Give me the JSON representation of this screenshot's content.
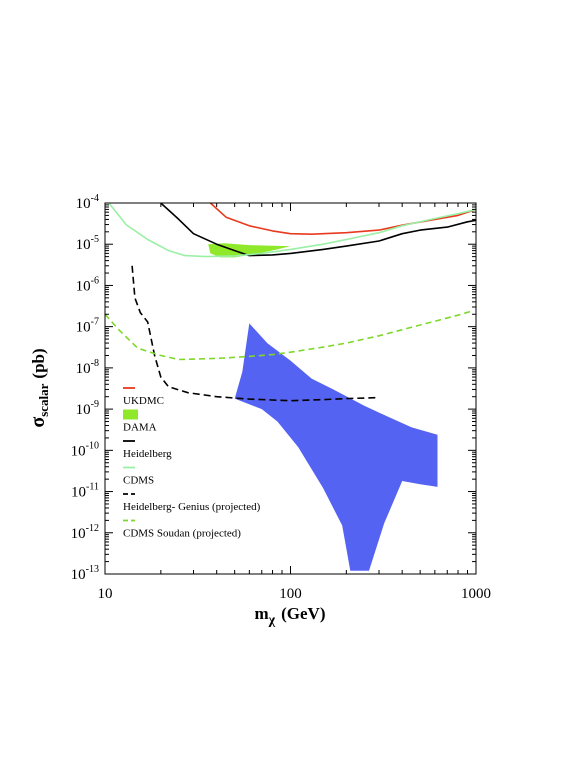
{
  "chart_data": {
    "type": "line",
    "xlabel_main": "m",
    "xlabel_sub": "χ",
    "xlabel_unit": "(GeV)",
    "ylabel_main": "σ",
    "ylabel_sub": "scalar",
    "ylabel_unit": "(pb)",
    "x_scale": "log",
    "y_scale": "log",
    "xlim": [
      10,
      1000
    ],
    "ylim": [
      1e-13,
      0.0001
    ],
    "grid": false,
    "legend_position": "bottom-left",
    "x_ticks": [
      {
        "value": 10,
        "label": "10"
      },
      {
        "value": 100,
        "label": "100"
      },
      {
        "value": 1000,
        "label": "1000"
      }
    ],
    "y_ticks": [
      {
        "value": 0.0001,
        "base": "10",
        "exp": "-4"
      },
      {
        "value": 1e-05,
        "base": "10",
        "exp": "-5"
      },
      {
        "value": 1e-06,
        "base": "10",
        "exp": "-6"
      },
      {
        "value": 1e-07,
        "base": "10",
        "exp": "-7"
      },
      {
        "value": 1e-08,
        "base": "10",
        "exp": "-8"
      },
      {
        "value": 1e-09,
        "base": "10",
        "exp": "-9"
      },
      {
        "value": 1e-10,
        "base": "10",
        "exp": "-10"
      },
      {
        "value": 1e-11,
        "base": "10",
        "exp": "-11"
      },
      {
        "value": 1e-12,
        "base": "10",
        "exp": "-12"
      },
      {
        "value": 1e-13,
        "base": "10",
        "exp": "-13"
      }
    ],
    "series": [
      {
        "name": "UKDMC",
        "kind": "line",
        "color": "#e83a1e",
        "dash": "solid",
        "points": [
          [
            37,
            0.0001
          ],
          [
            45,
            4.5e-05
          ],
          [
            60,
            2.8e-05
          ],
          [
            80,
            2.1e-05
          ],
          [
            100,
            1.8e-05
          ],
          [
            130,
            1.75e-05
          ],
          [
            200,
            1.9e-05
          ],
          [
            300,
            2.2e-05
          ],
          [
            400,
            2.9e-05
          ],
          [
            600,
            4e-05
          ],
          [
            800,
            5e-05
          ],
          [
            1000,
            7e-05
          ]
        ]
      },
      {
        "name": "DAMA",
        "kind": "region",
        "color": "#8fe82a",
        "points": [
          [
            36,
            1e-05
          ],
          [
            44,
            1.05e-05
          ],
          [
            60,
            9.5e-06
          ],
          [
            80,
            9.2e-06
          ],
          [
            100,
            9e-06
          ],
          [
            85,
            7.5e-06
          ],
          [
            65,
            5.8e-06
          ],
          [
            50,
            4.8e-06
          ],
          [
            42,
            4.8e-06
          ],
          [
            37,
            6e-06
          ]
        ]
      },
      {
        "name": "Heidelberg",
        "kind": "line",
        "color": "#000000",
        "dash": "solid",
        "points": [
          [
            20,
            0.0001
          ],
          [
            25,
            4e-05
          ],
          [
            30,
            1.8e-05
          ],
          [
            40,
            1e-05
          ],
          [
            50,
            7e-06
          ],
          [
            60,
            5.3e-06
          ],
          [
            80,
            5.5e-06
          ],
          [
            100,
            6e-06
          ],
          [
            150,
            7.5e-06
          ],
          [
            200,
            9e-06
          ],
          [
            300,
            1.2e-05
          ],
          [
            400,
            1.8e-05
          ],
          [
            500,
            2.2e-05
          ],
          [
            700,
            2.6e-05
          ],
          [
            900,
            3.5e-05
          ],
          [
            1000,
            3.8e-05
          ]
        ]
      },
      {
        "name": "CDMS",
        "kind": "line",
        "color": "#9bf0a6",
        "dash": "solid",
        "points": [
          [
            10.5,
            0.0001
          ],
          [
            13,
            3e-05
          ],
          [
            17,
            1.3e-05
          ],
          [
            22,
            7e-06
          ],
          [
            27,
            5.3e-06
          ],
          [
            35,
            5e-06
          ],
          [
            50,
            5.2e-06
          ],
          [
            70,
            6e-06
          ],
          [
            100,
            7.5e-06
          ],
          [
            150,
            1e-05
          ],
          [
            200,
            1.3e-05
          ],
          [
            300,
            1.9e-05
          ],
          [
            400,
            2.8e-05
          ],
          [
            600,
            4.2e-05
          ],
          [
            800,
            5.5e-05
          ],
          [
            1000,
            7e-05
          ]
        ]
      },
      {
        "name": "Heidelberg- Genius (projected)",
        "kind": "line",
        "color": "#000000",
        "dash": "7,4",
        "points": [
          [
            14,
            3e-06
          ],
          [
            14.5,
            5e-07
          ],
          [
            15.5,
            2.2e-07
          ],
          [
            17,
            1.3e-07
          ],
          [
            18.5,
            2e-08
          ],
          [
            20,
            6e-09
          ],
          [
            22,
            3.5e-09
          ],
          [
            28,
            2.5e-09
          ],
          [
            40,
            2e-09
          ],
          [
            60,
            1.75e-09
          ],
          [
            100,
            1.6e-09
          ],
          [
            150,
            1.7e-09
          ],
          [
            200,
            1.8e-09
          ],
          [
            300,
            1.9e-09
          ]
        ]
      },
      {
        "name": "CDMS Soudan (projected)",
        "kind": "line",
        "color": "#7ed82a",
        "dash": "6,4",
        "points": [
          [
            10,
            2e-07
          ],
          [
            12,
            8e-08
          ],
          [
            15,
            3e-08
          ],
          [
            20,
            2e-08
          ],
          [
            25,
            1.6e-08
          ],
          [
            40,
            1.7e-08
          ],
          [
            60,
            1.9e-08
          ],
          [
            80,
            2.1e-08
          ],
          [
            100,
            2.4e-08
          ],
          [
            150,
            3.2e-08
          ],
          [
            200,
            4e-08
          ],
          [
            300,
            6e-08
          ],
          [
            500,
            1.1e-07
          ],
          [
            800,
            1.9e-07
          ],
          [
            950,
            2.4e-07
          ]
        ]
      },
      {
        "name": "",
        "kind": "region",
        "color": "#5563f2",
        "points": [
          [
            60,
            1.2e-07
          ],
          [
            75,
            4e-08
          ],
          [
            100,
            1.5e-08
          ],
          [
            130,
            5.5e-09
          ],
          [
            170,
            3e-09
          ],
          [
            250,
            1.2e-09
          ],
          [
            350,
            6e-10
          ],
          [
            450,
            3.6e-10
          ],
          [
            620,
            2.4e-10
          ],
          [
            620,
            1.3e-11
          ],
          [
            500,
            1.5e-11
          ],
          [
            400,
            1.8e-11
          ],
          [
            320,
            1.7e-12
          ],
          [
            265,
            1.2e-13
          ],
          [
            210,
            1.2e-13
          ],
          [
            190,
            1.5e-12
          ],
          [
            150,
            1.2e-11
          ],
          [
            110,
            1.2e-10
          ],
          [
            85,
            5e-10
          ],
          [
            70,
            1e-09
          ],
          [
            50,
            1.8e-09
          ],
          [
            55,
            8e-09
          ]
        ]
      }
    ],
    "legend": [
      {
        "label": "UKDMC",
        "color": "#e83a1e",
        "kind": "line",
        "dash": "solid"
      },
      {
        "label": "DAMA",
        "color": "#8fe82a",
        "kind": "box",
        "dash": "solid"
      },
      {
        "label": "Heidelberg",
        "color": "#000000",
        "kind": "line",
        "dash": "solid"
      },
      {
        "label": "CDMS",
        "color": "#9bf0a6",
        "kind": "line",
        "dash": "solid"
      },
      {
        "label": "Heidelberg- Genius (projected)",
        "color": "#000000",
        "kind": "dash",
        "dash": "5,3"
      },
      {
        "label": "CDMS Soudan (projected)",
        "color": "#7ed82a",
        "kind": "dash",
        "dash": "5,3"
      }
    ]
  }
}
